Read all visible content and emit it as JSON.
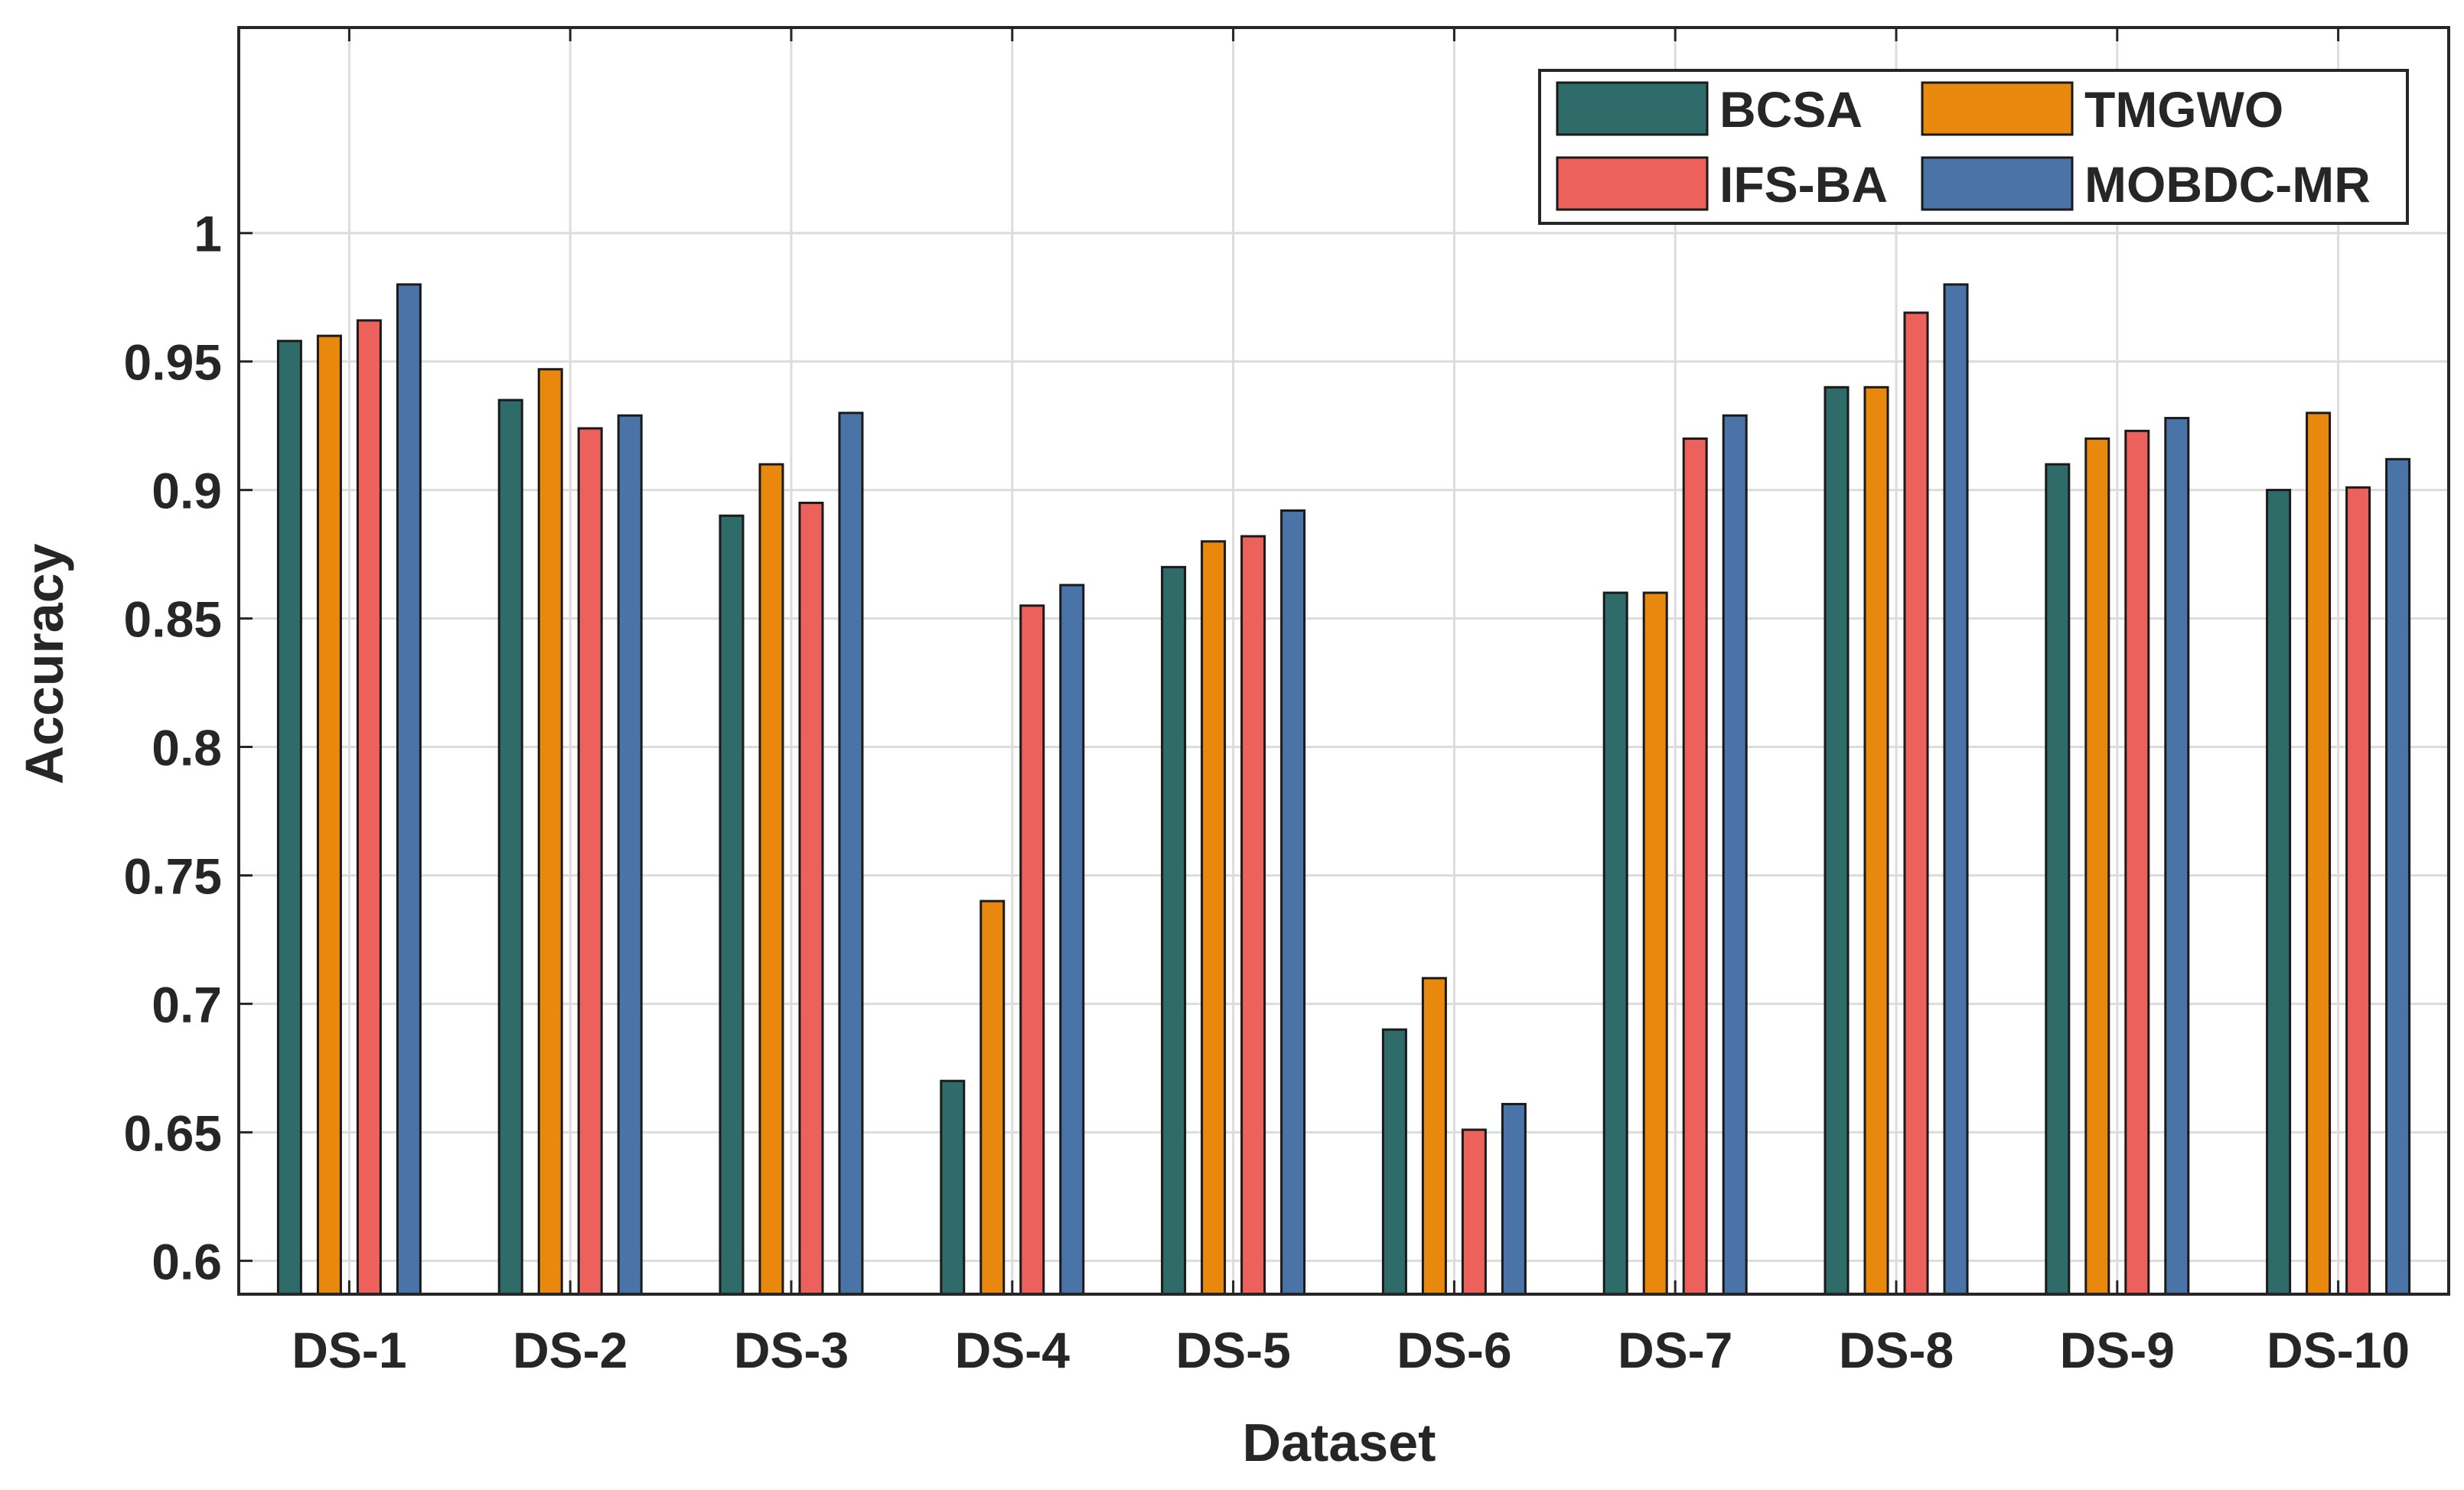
{
  "chart_data": {
    "type": "bar",
    "title": "",
    "xlabel": "Dataset",
    "ylabel": "Accuracy",
    "ylim": [
      0.587,
      1.08
    ],
    "yticks": [
      "0.6",
      "0.65",
      "0.7",
      "0.75",
      "0.8",
      "0.85",
      "0.9",
      "0.95",
      "1"
    ],
    "ytick_values": [
      0.6,
      0.65,
      0.7,
      0.75,
      0.8,
      0.85,
      0.9,
      0.95,
      1.0
    ],
    "grid": true,
    "legend_position": "top-right",
    "categories": [
      "DS-1",
      "DS-2",
      "DS-3",
      "DS-4",
      "DS-5",
      "DS-6",
      "DS-7",
      "DS-8",
      "DS-9",
      "DS-10"
    ],
    "series": [
      {
        "name": "BCSA",
        "color": "#2f6b68",
        "values": [
          0.958,
          0.935,
          0.89,
          0.67,
          0.87,
          0.69,
          0.86,
          0.94,
          0.91,
          0.9
        ]
      },
      {
        "name": "TMGWO",
        "color": "#e8880c",
        "values": [
          0.96,
          0.947,
          0.91,
          0.74,
          0.88,
          0.71,
          0.86,
          0.94,
          0.92,
          0.93
        ]
      },
      {
        "name": "IFS-BA",
        "color": "#ec615b",
        "values": [
          0.966,
          0.924,
          0.895,
          0.855,
          0.882,
          0.651,
          0.92,
          0.969,
          0.923,
          0.901
        ]
      },
      {
        "name": "MOBDC-MR",
        "color": "#4a74a8",
        "values": [
          0.98,
          0.929,
          0.93,
          0.863,
          0.892,
          0.661,
          0.929,
          0.98,
          0.928,
          0.912
        ]
      }
    ]
  }
}
